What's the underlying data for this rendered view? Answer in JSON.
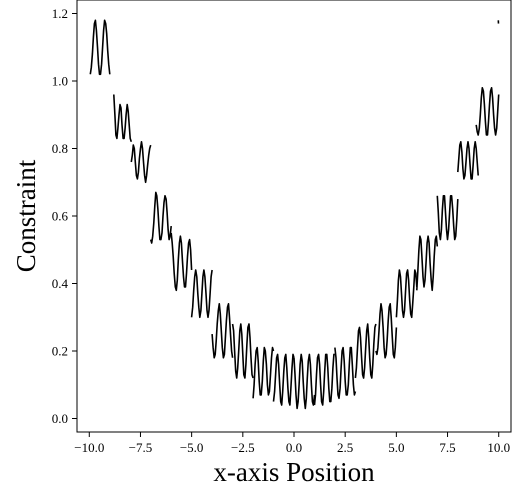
{
  "chart_data": {
    "type": "line",
    "title": "",
    "xlabel": "x-axis Position",
    "ylabel": "Constraint",
    "xlim": [
      -10.6,
      10.6
    ],
    "ylim": [
      -0.04,
      1.24
    ],
    "xticks": [
      -10.0,
      -7.5,
      -5.0,
      -2.5,
      0.0,
      2.5,
      5.0,
      7.5,
      10.0
    ],
    "xtick_labels": [
      "−10.0",
      "−7.5",
      "−5.0",
      "−2.5",
      "0.0",
      "2.5",
      "5.0",
      "7.5",
      "10.0"
    ],
    "yticks": [
      0.0,
      0.2,
      0.4,
      0.6,
      0.8,
      1.0,
      1.2
    ],
    "ytick_labels": [
      "0.0",
      "0.2",
      "0.4",
      "0.6",
      "0.8",
      "1.0",
      "1.2"
    ],
    "grid": false,
    "legend": false,
    "line_color": "#000000",
    "series": [
      {
        "segments": [
          {
            "x": [
              -9.95,
              -9.9,
              -9.85,
              -9.8,
              -9.75,
              -9.7,
              -9.65,
              -9.6,
              -9.55,
              -9.5,
              -9.45,
              -9.4,
              -9.35,
              -9.3,
              -9.25,
              -9.2,
              -9.15,
              -9.1,
              -9.05,
              -9.0
            ],
            "y": [
              1.02,
              1.04,
              1.08,
              1.13,
              1.17,
              1.18,
              1.15,
              1.1,
              1.05,
              1.02,
              1.02,
              1.05,
              1.1,
              1.15,
              1.18,
              1.17,
              1.14,
              1.09,
              1.05,
              1.02
            ]
          },
          {
            "x": [
              -8.8,
              -8.75,
              -8.7,
              -8.65,
              -8.6,
              -8.55,
              -8.5,
              -8.45,
              -8.4,
              -8.35,
              -8.3,
              -8.25,
              -8.2,
              -8.15,
              -8.1,
              -8.05,
              -8.0,
              -7.95
            ],
            "y": [
              0.96,
              0.9,
              0.84,
              0.83,
              0.86,
              0.9,
              0.93,
              0.92,
              0.87,
              0.83,
              0.83,
              0.86,
              0.9,
              0.93,
              0.91,
              0.87,
              0.83,
              0.82
            ]
          },
          {
            "x": [
              -7.95,
              -7.9,
              -7.85,
              -7.8,
              -7.75,
              -7.7,
              -7.65,
              -7.6,
              -7.55,
              -7.5,
              -7.45,
              -7.4,
              -7.35,
              -7.3,
              -7.25,
              -7.2,
              -7.15,
              -7.1,
              -7.05,
              -7.0
            ],
            "y": [
              0.76,
              0.78,
              0.81,
              0.8,
              0.76,
              0.72,
              0.71,
              0.73,
              0.77,
              0.8,
              0.82,
              0.8,
              0.76,
              0.72,
              0.7,
              0.72,
              0.75,
              0.78,
              0.8,
              0.81
            ]
          },
          {
            "x": [
              -7.0,
              -6.95,
              -6.9,
              -6.85,
              -6.8,
              -6.75,
              -6.7,
              -6.65,
              -6.6,
              -6.55,
              -6.5,
              -6.45,
              -6.4,
              -6.35,
              -6.3,
              -6.25,
              -6.2,
              -6.15,
              -6.1,
              -6.05,
              -6.0
            ],
            "y": [
              0.53,
              0.52,
              0.54,
              0.58,
              0.63,
              0.67,
              0.66,
              0.62,
              0.57,
              0.53,
              0.53,
              0.55,
              0.6,
              0.64,
              0.66,
              0.65,
              0.61,
              0.56,
              0.53,
              0.54,
              0.57
            ]
          },
          {
            "x": [
              -6.0,
              -5.95,
              -5.9,
              -5.85,
              -5.8,
              -5.75,
              -5.7,
              -5.65,
              -5.6,
              -5.55,
              -5.5,
              -5.45,
              -5.4,
              -5.35,
              -5.3,
              -5.25,
              -5.2,
              -5.15,
              -5.1,
              -5.05,
              -5.0
            ],
            "y": [
              0.55,
              0.52,
              0.48,
              0.43,
              0.39,
              0.38,
              0.41,
              0.47,
              0.52,
              0.54,
              0.52,
              0.47,
              0.42,
              0.39,
              0.39,
              0.43,
              0.48,
              0.52,
              0.53,
              0.5,
              0.44
            ]
          },
          {
            "x": [
              -5.0,
              -4.95,
              -4.9,
              -4.85,
              -4.8,
              -4.75,
              -4.7,
              -4.65,
              -4.6,
              -4.55,
              -4.5,
              -4.45,
              -4.4,
              -4.35,
              -4.3,
              -4.25,
              -4.2,
              -4.15,
              -4.1,
              -4.05,
              -4.0
            ],
            "y": [
              0.3,
              0.33,
              0.38,
              0.42,
              0.44,
              0.42,
              0.37,
              0.33,
              0.3,
              0.32,
              0.37,
              0.42,
              0.44,
              0.42,
              0.37,
              0.32,
              0.3,
              0.32,
              0.37,
              0.42,
              0.44
            ]
          },
          {
            "x": [
              -4.0,
              -3.95,
              -3.9,
              -3.85,
              -3.8,
              -3.75,
              -3.7,
              -3.65,
              -3.6,
              -3.55,
              -3.5,
              -3.45,
              -3.4,
              -3.35,
              -3.3,
              -3.25,
              -3.2,
              -3.15,
              -3.1,
              -3.05,
              -3.0
            ],
            "y": [
              0.25,
              0.21,
              0.18,
              0.19,
              0.23,
              0.28,
              0.32,
              0.34,
              0.31,
              0.26,
              0.21,
              0.18,
              0.19,
              0.24,
              0.29,
              0.33,
              0.34,
              0.3,
              0.25,
              0.2,
              0.18
            ]
          },
          {
            "x": [
              -3.0,
              -2.95,
              -2.9,
              -2.85,
              -2.8,
              -2.75,
              -2.7,
              -2.65,
              -2.6,
              -2.55,
              -2.5,
              -2.45,
              -2.4,
              -2.35,
              -2.3,
              -2.25,
              -2.2,
              -2.15,
              -2.1,
              -2.05,
              -2.0
            ],
            "y": [
              0.28,
              0.26,
              0.2,
              0.14,
              0.12,
              0.15,
              0.2,
              0.26,
              0.28,
              0.25,
              0.19,
              0.13,
              0.12,
              0.16,
              0.22,
              0.27,
              0.28,
              0.24,
              0.18,
              0.13,
              0.12
            ]
          },
          {
            "x": [
              -2.0,
              -1.95,
              -1.9,
              -1.85,
              -1.8,
              -1.75,
              -1.7,
              -1.65,
              -1.6,
              -1.55,
              -1.5,
              -1.45,
              -1.4,
              -1.35,
              -1.3,
              -1.25,
              -1.2,
              -1.15,
              -1.1,
              -1.05,
              -1.0
            ],
            "y": [
              0.06,
              0.1,
              0.16,
              0.2,
              0.21,
              0.17,
              0.11,
              0.07,
              0.07,
              0.11,
              0.17,
              0.21,
              0.2,
              0.16,
              0.1,
              0.07,
              0.08,
              0.13,
              0.18,
              0.21,
              0.2
            ]
          },
          {
            "x": [
              -1.0,
              -0.95,
              -0.9,
              -0.85,
              -0.8,
              -0.75,
              -0.7,
              -0.65,
              -0.6,
              -0.55,
              -0.5,
              -0.45,
              -0.4,
              -0.35,
              -0.3,
              -0.25,
              -0.2,
              -0.15,
              -0.1,
              -0.05,
              0.0
            ],
            "y": [
              0.05,
              0.08,
              0.13,
              0.18,
              0.19,
              0.16,
              0.1,
              0.05,
              0.04,
              0.08,
              0.14,
              0.18,
              0.19,
              0.15,
              0.09,
              0.05,
              0.04,
              0.09,
              0.15,
              0.19,
              0.18
            ]
          },
          {
            "x": [
              0.0,
              0.05,
              0.1,
              0.15,
              0.2,
              0.25,
              0.3,
              0.35,
              0.4,
              0.45,
              0.5,
              0.55,
              0.6,
              0.65,
              0.7,
              0.75,
              0.8,
              0.85,
              0.9,
              0.95,
              1.0
            ],
            "y": [
              0.18,
              0.13,
              0.07,
              0.03,
              0.05,
              0.1,
              0.16,
              0.19,
              0.17,
              0.11,
              0.06,
              0.03,
              0.06,
              0.12,
              0.17,
              0.19,
              0.16,
              0.1,
              0.05,
              0.04,
              0.07
            ]
          },
          {
            "x": [
              1.0,
              1.05,
              1.1,
              1.15,
              1.2,
              1.25,
              1.3,
              1.35,
              1.4,
              1.45,
              1.5,
              1.55,
              1.6,
              1.65,
              1.7,
              1.75,
              1.8,
              1.85,
              1.9,
              1.95,
              2.0
            ],
            "y": [
              0.04,
              0.07,
              0.13,
              0.18,
              0.19,
              0.16,
              0.1,
              0.05,
              0.04,
              0.08,
              0.14,
              0.19,
              0.19,
              0.15,
              0.09,
              0.05,
              0.05,
              0.09,
              0.15,
              0.19,
              0.19
            ]
          },
          {
            "x": [
              2.0,
              2.05,
              2.1,
              2.15,
              2.2,
              2.25,
              2.3,
              2.35,
              2.4,
              2.45,
              2.5,
              2.55,
              2.6,
              2.65,
              2.7,
              2.75,
              2.8,
              2.85,
              2.9,
              2.95,
              3.0
            ],
            "y": [
              0.21,
              0.18,
              0.12,
              0.07,
              0.06,
              0.09,
              0.15,
              0.2,
              0.21,
              0.17,
              0.11,
              0.07,
              0.07,
              0.1,
              0.16,
              0.21,
              0.21,
              0.16,
              0.1,
              0.07,
              0.08
            ]
          },
          {
            "x": [
              3.0,
              3.05,
              3.1,
              3.15,
              3.2,
              3.25,
              3.3,
              3.35,
              3.4,
              3.45,
              3.5,
              3.55,
              3.6,
              3.65,
              3.7,
              3.75,
              3.8,
              3.85,
              3.9,
              3.95,
              4.0
            ],
            "y": [
              0.12,
              0.15,
              0.21,
              0.26,
              0.27,
              0.24,
              0.18,
              0.13,
              0.12,
              0.15,
              0.21,
              0.26,
              0.28,
              0.24,
              0.18,
              0.13,
              0.12,
              0.16,
              0.22,
              0.27,
              0.28
            ]
          },
          {
            "x": [
              4.0,
              4.05,
              4.1,
              4.15,
              4.2,
              4.25,
              4.3,
              4.35,
              4.4,
              4.45,
              4.5,
              4.55,
              4.6,
              4.65,
              4.7,
              4.75,
              4.8,
              4.85,
              4.9,
              4.95,
              5.0
            ],
            "y": [
              0.2,
              0.19,
              0.21,
              0.26,
              0.31,
              0.34,
              0.32,
              0.27,
              0.21,
              0.18,
              0.19,
              0.23,
              0.29,
              0.33,
              0.34,
              0.3,
              0.24,
              0.19,
              0.18,
              0.21,
              0.27
            ]
          },
          {
            "x": [
              5.0,
              5.05,
              5.1,
              5.15,
              5.2,
              5.25,
              5.3,
              5.35,
              5.4,
              5.45,
              5.5,
              5.55,
              5.6,
              5.65,
              5.7,
              5.75,
              5.8,
              5.85,
              5.9,
              5.95,
              6.0
            ],
            "y": [
              0.3,
              0.35,
              0.41,
              0.44,
              0.42,
              0.37,
              0.32,
              0.3,
              0.32,
              0.38,
              0.43,
              0.44,
              0.41,
              0.35,
              0.31,
              0.3,
              0.34,
              0.39,
              0.44,
              0.43,
              0.39
            ]
          },
          {
            "x": [
              6.0,
              6.05,
              6.1,
              6.15,
              6.2,
              6.25,
              6.3,
              6.35,
              6.4,
              6.45,
              6.5,
              6.55,
              6.6,
              6.65,
              6.7,
              6.75,
              6.8,
              6.85,
              6.9,
              6.95,
              7.0
            ],
            "y": [
              0.38,
              0.44,
              0.5,
              0.54,
              0.53,
              0.48,
              0.42,
              0.39,
              0.41,
              0.46,
              0.52,
              0.54,
              0.52,
              0.46,
              0.41,
              0.38,
              0.42,
              0.48,
              0.53,
              0.54,
              0.51
            ]
          },
          {
            "x": [
              7.0,
              7.05,
              7.1,
              7.15,
              7.2,
              7.25,
              7.3,
              7.35,
              7.4,
              7.45,
              7.5,
              7.55,
              7.6,
              7.65,
              7.7,
              7.75,
              7.8,
              7.85,
              7.9,
              7.95,
              8.0
            ],
            "y": [
              0.66,
              0.61,
              0.55,
              0.53,
              0.56,
              0.62,
              0.66,
              0.66,
              0.61,
              0.56,
              0.53,
              0.56,
              0.61,
              0.66,
              0.66,
              0.62,
              0.57,
              0.53,
              0.54,
              0.59,
              0.65
            ]
          },
          {
            "x": [
              8.0,
              8.05,
              8.1,
              8.15,
              8.2,
              8.25,
              8.3,
              8.35,
              8.4,
              8.45,
              8.5,
              8.55,
              8.6,
              8.65,
              8.7,
              8.75,
              8.8,
              8.85,
              8.9,
              8.95,
              9.0
            ],
            "y": [
              0.73,
              0.77,
              0.81,
              0.82,
              0.79,
              0.74,
              0.71,
              0.72,
              0.76,
              0.8,
              0.82,
              0.8,
              0.75,
              0.71,
              0.71,
              0.75,
              0.8,
              0.82,
              0.8,
              0.76,
              0.72
            ]
          },
          {
            "x": [
              8.9,
              8.95,
              9.0,
              9.05,
              9.1,
              9.15,
              9.2,
              9.25,
              9.3,
              9.35,
              9.4,
              9.45,
              9.5,
              9.55,
              9.6,
              9.65,
              9.7,
              9.75,
              9.8,
              9.85,
              9.9,
              9.95,
              10.0
            ],
            "y": [
              0.87,
              0.85,
              0.84,
              0.86,
              0.9,
              0.95,
              0.98,
              0.97,
              0.93,
              0.88,
              0.84,
              0.84,
              0.88,
              0.93,
              0.97,
              0.98,
              0.95,
              0.9,
              0.86,
              0.84,
              0.86,
              0.91,
              0.96
            ]
          },
          {
            "x": [
              9.98,
              9.99
            ],
            "y": [
              1.18,
              1.17
            ]
          }
        ]
      }
    ]
  }
}
